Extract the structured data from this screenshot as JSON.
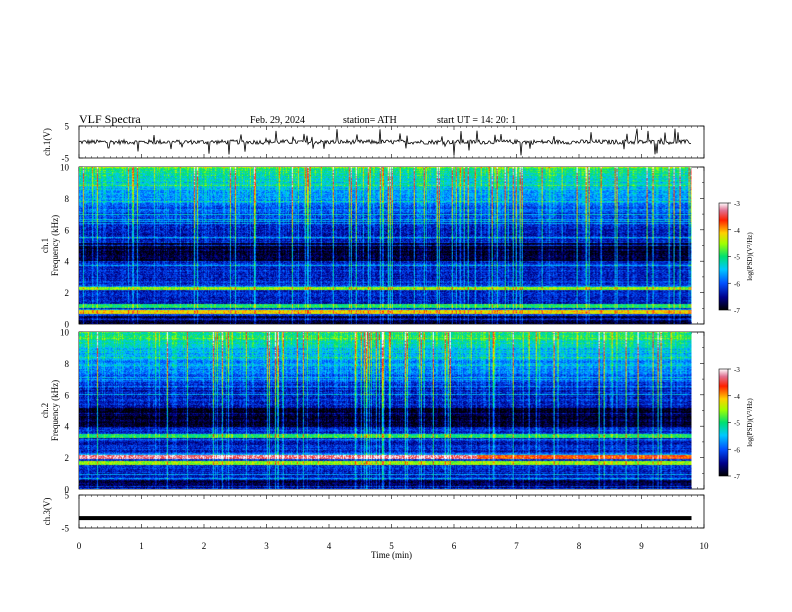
{
  "header": {
    "title": "VLF  Spectra",
    "date": "Feb. 29, 2024",
    "station": "station= ATH",
    "start_ut": "start  UT  =   14: 20: 1"
  },
  "chart_data": [
    {
      "type": "line",
      "panel": "ch1-waveform",
      "ylabel": "ch.1(V)",
      "ylim": [
        -5,
        5
      ],
      "yticks": [
        "5",
        "-5"
      ],
      "xlim": [
        0,
        10
      ],
      "baseline": 0,
      "description_level": "noisy waveform around 0 V with impulsive spikes up to about ±3 V"
    },
    {
      "type": "heatmap",
      "panel": "ch1-spectrogram",
      "ylabel": "ch.1\nFrequency  (kHz)",
      "ylim": [
        0,
        10
      ],
      "yticks": [
        "0",
        "2",
        "4",
        "6",
        "8",
        "10"
      ],
      "xlim": [
        0,
        10
      ],
      "colorbar": {
        "label": "log(PSD)(V²/Hz)",
        "range": [
          -7,
          -3
        ],
        "ticks": [
          "-3",
          "-4",
          "-5",
          "-6",
          "-7"
        ]
      },
      "bands": [
        {
          "freq_khz": 2.3,
          "level": -4.6
        },
        {
          "freq_khz": 1.2,
          "level": -5.0
        },
        {
          "freq_khz": 0.8,
          "level": -4.2
        }
      ]
    },
    {
      "type": "heatmap",
      "panel": "ch2-spectrogram",
      "ylabel": "ch.2\nFrequency  (kHz)",
      "ylim": [
        0,
        10
      ],
      "yticks": [
        "0",
        "2",
        "4",
        "6",
        "8",
        "10"
      ],
      "xlim": [
        0,
        10
      ],
      "colorbar": {
        "label": "log(PSD)(V²/Hz)",
        "range": [
          -7,
          -3
        ],
        "ticks": [
          "-3",
          "-4",
          "-5",
          "-6",
          "-7"
        ]
      },
      "bands": [
        {
          "freq_khz": 2.05,
          "level": -3.8
        },
        {
          "freq_khz": 1.7,
          "level": -4.6
        },
        {
          "freq_khz": 3.4,
          "level": -5.0
        }
      ]
    },
    {
      "type": "line",
      "panel": "ch3-waveform",
      "ylabel": "ch.3(V)",
      "ylim": [
        -5,
        5
      ],
      "yticks": [
        "5",
        "-5"
      ],
      "xlim": [
        0,
        10
      ],
      "baseline": -2,
      "description_level": "flat signal near -2 V"
    }
  ],
  "xaxis": {
    "label": "Time  (min)",
    "ticks": [
      "0",
      "1",
      "2",
      "3",
      "4",
      "5",
      "6",
      "7",
      "8",
      "9",
      "10"
    ],
    "range": [
      0,
      10
    ]
  },
  "data_end_min": 9.8
}
